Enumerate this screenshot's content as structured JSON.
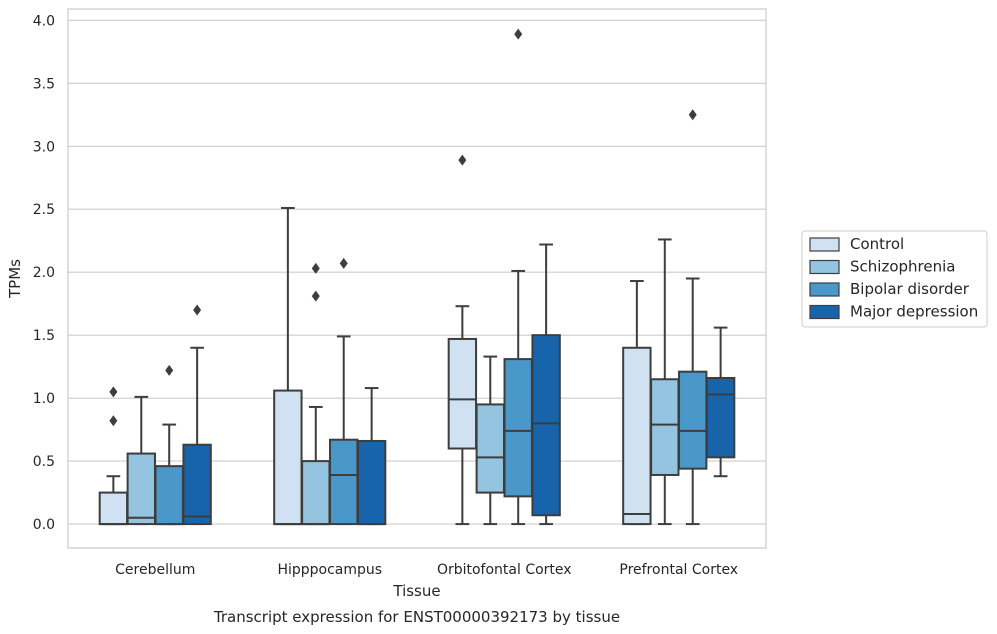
{
  "chart_data": {
    "type": "box",
    "title": "Transcript expression for ENST00000392173 by tissue",
    "xlabel": "Tissue",
    "ylabel": "TPMs",
    "ylim": [
      -0.19,
      4.09
    ],
    "yticks": [
      "0.0",
      "0.5",
      "1.0",
      "1.5",
      "2.0",
      "2.5",
      "3.0",
      "3.5",
      "4.0"
    ],
    "grid": true,
    "legend_position": "right",
    "categories": [
      "Cerebellum",
      "Hipppocampus",
      "Orbitofontal Cortex",
      "Prefrontal Cortex"
    ],
    "series": [
      {
        "name": "Control",
        "color": "#d0e1f2",
        "boxes": [
          {
            "whislo": 0.0,
            "q1": 0.0,
            "med": 0.0,
            "q3": 0.25,
            "whishi": 0.38,
            "fliers": [
              0.82,
              1.05
            ]
          },
          {
            "whislo": 0.0,
            "q1": 0.0,
            "med": 0.0,
            "q3": 1.06,
            "whishi": 2.51,
            "fliers": []
          },
          {
            "whislo": 0.0,
            "q1": 0.6,
            "med": 0.99,
            "q3": 1.47,
            "whishi": 1.73,
            "fliers": [
              2.89
            ]
          },
          {
            "whislo": 0.0,
            "q1": 0.0,
            "med": 0.08,
            "q3": 1.4,
            "whishi": 1.93,
            "fliers": []
          }
        ]
      },
      {
        "name": "Schizophrenia",
        "color": "#94c4df",
        "boxes": [
          {
            "whislo": 0.0,
            "q1": 0.0,
            "med": 0.05,
            "q3": 0.56,
            "whishi": 1.01,
            "fliers": []
          },
          {
            "whislo": 0.0,
            "q1": 0.0,
            "med": 0.0,
            "q3": 0.5,
            "whishi": 0.93,
            "fliers": [
              1.81,
              2.03
            ]
          },
          {
            "whislo": 0.0,
            "q1": 0.25,
            "med": 0.53,
            "q3": 0.95,
            "whishi": 1.33,
            "fliers": []
          },
          {
            "whislo": 0.0,
            "q1": 0.39,
            "med": 0.79,
            "q3": 1.15,
            "whishi": 2.26,
            "fliers": []
          }
        ]
      },
      {
        "name": "Bipolar disorder",
        "color": "#4a98c9",
        "boxes": [
          {
            "whislo": 0.0,
            "q1": 0.0,
            "med": 0.0,
            "q3": 0.46,
            "whishi": 0.79,
            "fliers": [
              1.22
            ]
          },
          {
            "whislo": 0.0,
            "q1": 0.0,
            "med": 0.39,
            "q3": 0.67,
            "whishi": 1.49,
            "fliers": [
              2.07
            ]
          },
          {
            "whislo": 0.0,
            "q1": 0.22,
            "med": 0.74,
            "q3": 1.31,
            "whishi": 2.01,
            "fliers": [
              3.89
            ]
          },
          {
            "whislo": 0.0,
            "q1": 0.44,
            "med": 0.74,
            "q3": 1.21,
            "whishi": 1.95,
            "fliers": [
              3.25
            ]
          }
        ]
      },
      {
        "name": "Major depression",
        "color": "#1764ab",
        "boxes": [
          {
            "whislo": 0.0,
            "q1": 0.0,
            "med": 0.06,
            "q3": 0.63,
            "whishi": 1.4,
            "fliers": [
              1.7
            ]
          },
          {
            "whislo": 0.0,
            "q1": 0.0,
            "med": 0.0,
            "q3": 0.66,
            "whishi": 1.08,
            "fliers": []
          },
          {
            "whislo": 0.0,
            "q1": 0.07,
            "med": 0.8,
            "q3": 1.5,
            "whishi": 2.22,
            "fliers": []
          },
          {
            "whislo": 0.38,
            "q1": 0.53,
            "med": 1.03,
            "q3": 1.16,
            "whishi": 1.56,
            "fliers": []
          }
        ]
      }
    ]
  }
}
